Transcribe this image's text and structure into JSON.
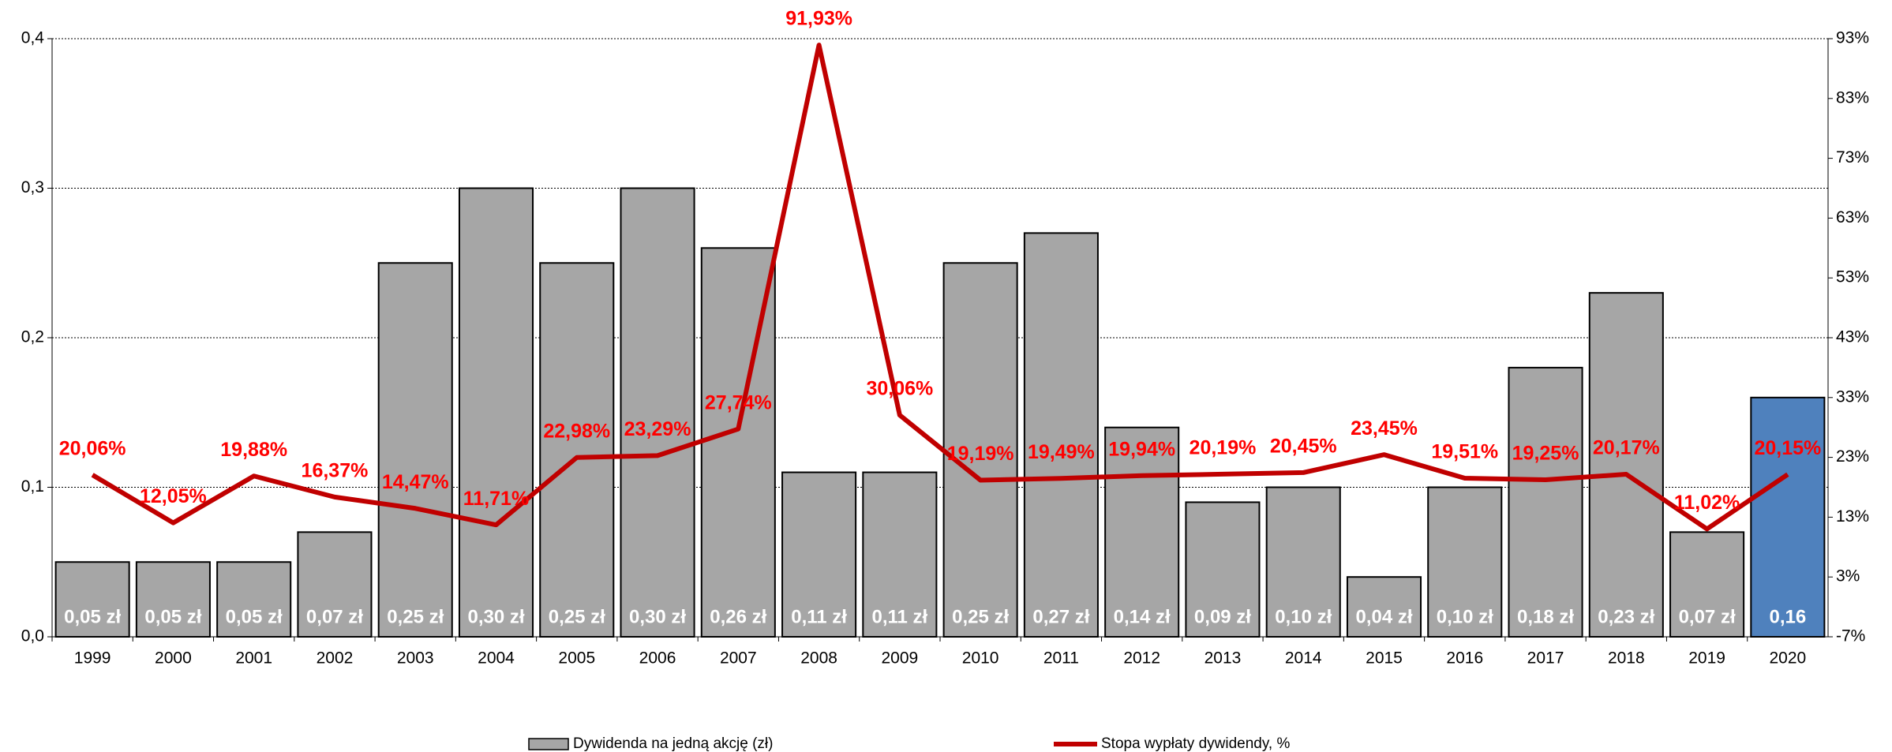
{
  "chart_data": {
    "type": "bar_line",
    "categories": [
      "1999",
      "2000",
      "2001",
      "2002",
      "2003",
      "2004",
      "2005",
      "2006",
      "2007",
      "2008",
      "2009",
      "2010",
      "2011",
      "2012",
      "2013",
      "2014",
      "2015",
      "2016",
      "2017",
      "2018",
      "2019",
      "2020"
    ],
    "series": [
      {
        "name": "Dywidenda na jedną akcję (zł)",
        "type": "bar",
        "color": "#a6a6a6",
        "colors": [
          "#a6a6a6",
          "#a6a6a6",
          "#a6a6a6",
          "#a6a6a6",
          "#a6a6a6",
          "#a6a6a6",
          "#a6a6a6",
          "#a6a6a6",
          "#a6a6a6",
          "#a6a6a6",
          "#a6a6a6",
          "#a6a6a6",
          "#a6a6a6",
          "#a6a6a6",
          "#a6a6a6",
          "#a6a6a6",
          "#a6a6a6",
          "#a6a6a6",
          "#a6a6a6",
          "#a6a6a6",
          "#a6a6a6",
          "#4f81bd"
        ],
        "values": [
          0.05,
          0.05,
          0.05,
          0.07,
          0.25,
          0.3,
          0.25,
          0.3,
          0.26,
          0.11,
          0.11,
          0.25,
          0.27,
          0.14,
          0.09,
          0.1,
          0.04,
          0.1,
          0.18,
          0.23,
          0.07,
          0.16
        ],
        "value_labels": [
          "0,05 zł",
          "0,05 zł",
          "0,05 zł",
          "0,07 zł",
          "0,25 zł",
          "0,30 zł",
          "0,25 zł",
          "0,30 zł",
          "0,26 zł",
          "0,11 zł",
          "0,11 zł",
          "0,25 zł",
          "0,27 zł",
          "0,14 zł",
          "0,09 zł",
          "0,10 zł",
          "0,04 zł",
          "0,10 zł",
          "0,18 zł",
          "0,23 zł",
          "0,07 zł",
          "0,16"
        ]
      },
      {
        "name": "Stopa wypłaty dywidendy, %",
        "type": "line",
        "color": "#c00000",
        "axis": "y2",
        "values": [
          20.06,
          12.05,
          19.88,
          16.37,
          14.47,
          11.71,
          22.98,
          23.29,
          27.74,
          91.93,
          30.06,
          19.19,
          19.49,
          19.94,
          20.19,
          20.45,
          23.45,
          19.51,
          19.25,
          20.17,
          11.02,
          20.15
        ],
        "value_labels": [
          "20,06%",
          "12,05%",
          "19,88%",
          "16,37%",
          "14,47%",
          "11,71%",
          "22,98%",
          "23,29%",
          "27,74%",
          "91,93%",
          "30,06%",
          "19,19%",
          "19,49%",
          "19,94%",
          "20,19%",
          "20,45%",
          "23,45%",
          "19,51%",
          "19,25%",
          "20,17%",
          "11,02%",
          "20,15%"
        ]
      }
    ],
    "ylim": [
      0,
      0.4
    ],
    "yticks": [
      {
        "value": 0,
        "label": "0,0"
      },
      {
        "value": 0.1,
        "label": "0,1"
      },
      {
        "value": 0.2,
        "label": "0,2"
      },
      {
        "value": 0.3,
        "label": "0,3"
      },
      {
        "value": 0.4,
        "label": "0,4"
      }
    ],
    "y2lim": [
      -7,
      93
    ],
    "y2ticks": [
      {
        "value": -7,
        "label": "-7%"
      },
      {
        "value": 3,
        "label": "3%"
      },
      {
        "value": 13,
        "label": "13%"
      },
      {
        "value": 23,
        "label": "23%"
      },
      {
        "value": 33,
        "label": "33%"
      },
      {
        "value": 43,
        "label": "43%"
      },
      {
        "value": 53,
        "label": "53%"
      },
      {
        "value": 63,
        "label": "63%"
      },
      {
        "value": 73,
        "label": "73%"
      },
      {
        "value": 83,
        "label": "83%"
      },
      {
        "value": 93,
        "label": "93%"
      }
    ],
    "grid": true,
    "legend": "bottom"
  }
}
